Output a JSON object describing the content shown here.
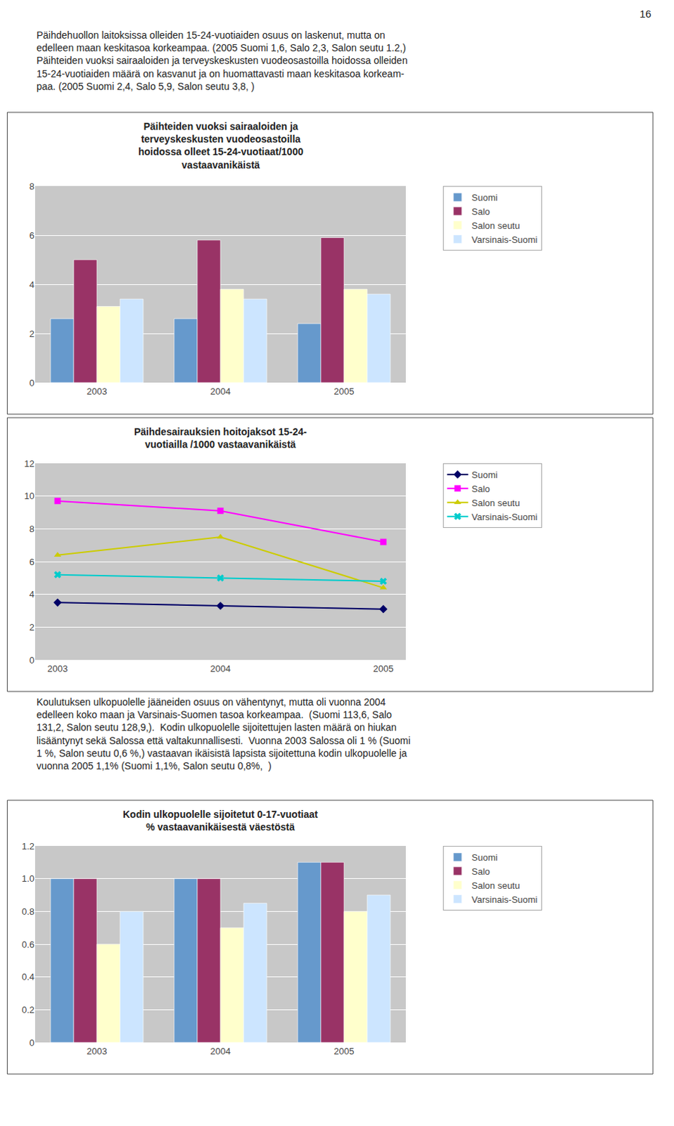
{
  "page_number": "16",
  "text_blocks": [
    [
      "Päihdehuollon laitoksissa olleiden 15-24-vuotiaiden osuus on laskenut, mutta on",
      "edelleen maan keskitasoa korkeampaa. (2005 Suomi 1,6, Salo 2,3, Salon seutu 1.2,)",
      "Päihteiden vuoksi sairaaloiden ja terveyskeskusten vuodeosastoilla hoidossa olleiden",
      "15-24-vuotiaiden määrä on kasvanut ja on huomattavasti maan keskitasoa korkeam-",
      "paa. (2005 Suomi 2,4, Salo 5,9, Salon seutu 3,8, )"
    ],
    [
      "Koulutuksen ulkopuolelle jääneiden osuus on vähentynyt, mutta oli vuonna 2004",
      "edelleen koko maan ja Varsinais-Suomen tasoa korkeampaa.  (Suomi 113,6, Salo",
      "131,2, Salon seutu 128,9,).  Kodin ulkopuolelle sijoitettujen lasten määrä on hiukan",
      "lisääntynyt sekä Salossa että valtakunnallisesti.  Vuonna 2003 Salossa oli 1 % (Suomi",
      "1 %, Salon seutu 0,6 %,) vastaavan ikäisistä lapsista sijoitettuna kodin ulkopuolelle ja",
      "vuonna 2005 1,1% (Suomi 1,1%, Salon seutu 0,8%,  )"
    ]
  ],
  "chart_data": [
    {
      "type": "bar",
      "title": "Päihteiden vuoksi sairaaloiden ja\nterveyskeskusten vuodeosastoilla\nhoidossa olleet 15-24-vuotiaat/1000\nvastaavanikäistä",
      "categories": [
        "2003",
        "2004",
        "2005"
      ],
      "series": [
        {
          "name": "Suomi",
          "color": "#6699CC",
          "values": [
            2.6,
            2.6,
            2.4
          ]
        },
        {
          "name": "Salo",
          "color": "#993366",
          "values": [
            5.0,
            5.8,
            5.9
          ]
        },
        {
          "name": "Salon seutu",
          "color": "#FFFFCC",
          "values": [
            3.1,
            3.8,
            3.8
          ]
        },
        {
          "name": "Varsinais-Suomi",
          "color": "#CCE5FF",
          "values": [
            3.4,
            3.4,
            3.6
          ]
        }
      ],
      "ylim": [
        0,
        8
      ],
      "yticks": [
        0,
        2,
        4,
        6,
        8
      ],
      "grid": true,
      "legend": "right"
    },
    {
      "type": "line",
      "title": "Päihdesairauksien hoitojaksot 15-24-\nvuotiailla /1000 vastaavanikäistä",
      "categories": [
        "2003",
        "2004",
        "2005"
      ],
      "series": [
        {
          "name": "Suomi",
          "color": "#000066",
          "marker": "diamond",
          "values": [
            3.5,
            3.3,
            3.1
          ]
        },
        {
          "name": "Salo",
          "color": "#FF00FF",
          "marker": "square",
          "values": [
            9.7,
            9.1,
            7.2
          ]
        },
        {
          "name": "Salon seutu",
          "color": "#CCCC00",
          "marker": "triangle-up",
          "values": [
            6.4,
            7.5,
            4.4
          ]
        },
        {
          "name": "Varsinais-Suomi",
          "color": "#00CCCC",
          "marker": "x",
          "values": [
            5.2,
            5.0,
            4.8
          ]
        }
      ],
      "ylim": [
        0,
        12
      ],
      "yticks": [
        0,
        2,
        4,
        6,
        8,
        10,
        12
      ],
      "grid": true,
      "legend": "right"
    },
    {
      "type": "bar",
      "title": "Kodin ulkopuolelle sijoitetut 0-17-vuotiaat\n% vastaavanikäisestä väestöstä",
      "categories": [
        "2003",
        "2004",
        "2005"
      ],
      "series": [
        {
          "name": "Suomi",
          "color": "#6699CC",
          "values": [
            1.0,
            1.0,
            1.1
          ]
        },
        {
          "name": "Salo",
          "color": "#993366",
          "values": [
            1.0,
            1.0,
            1.1
          ]
        },
        {
          "name": "Salon seutu",
          "color": "#FFFFCC",
          "values": [
            0.6,
            0.7,
            0.8
          ]
        },
        {
          "name": "Varsinais-Suomi",
          "color": "#CCE5FF",
          "values": [
            0.8,
            0.85,
            0.9
          ]
        }
      ],
      "ylim": [
        0,
        1.2
      ],
      "yticks": [
        0,
        0.2,
        0.4,
        0.6,
        0.8,
        {
          "value": 1.0,
          "label": "1.0"
        },
        1.2
      ],
      "grid": true,
      "legend": "right"
    }
  ]
}
